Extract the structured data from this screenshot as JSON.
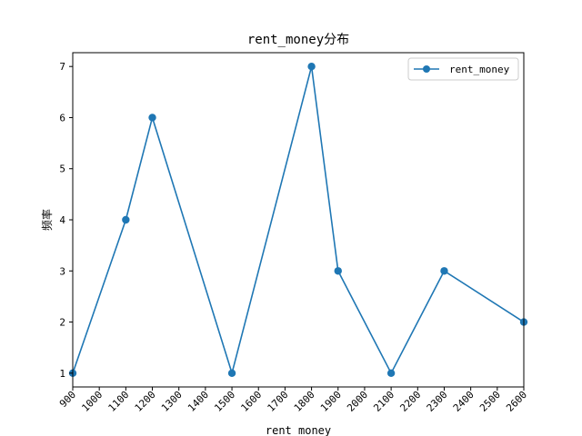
{
  "chart_data": {
    "type": "line",
    "title": "rent_money分布",
    "xlabel": "rent_money",
    "ylabel": "频率",
    "xlim": [
      900,
      2600
    ],
    "ylim": [
      0.73,
      7.27
    ],
    "x_ticks": [
      900,
      1000,
      1100,
      1200,
      1300,
      1400,
      1500,
      1600,
      1700,
      1800,
      1900,
      2000,
      2100,
      2200,
      2300,
      2400,
      2500,
      2600
    ],
    "y_ticks": [
      1,
      2,
      3,
      4,
      5,
      6,
      7
    ],
    "legend_position": "upper right",
    "grid": false,
    "series": [
      {
        "name": "rent_money",
        "color": "#1f77b4",
        "marker": "circle",
        "x": [
          900,
          1100,
          1200,
          1500,
          1800,
          1900,
          2100,
          2300,
          2600
        ],
        "y": [
          1,
          4,
          6,
          1,
          7,
          3,
          1,
          3,
          2
        ]
      }
    ]
  }
}
